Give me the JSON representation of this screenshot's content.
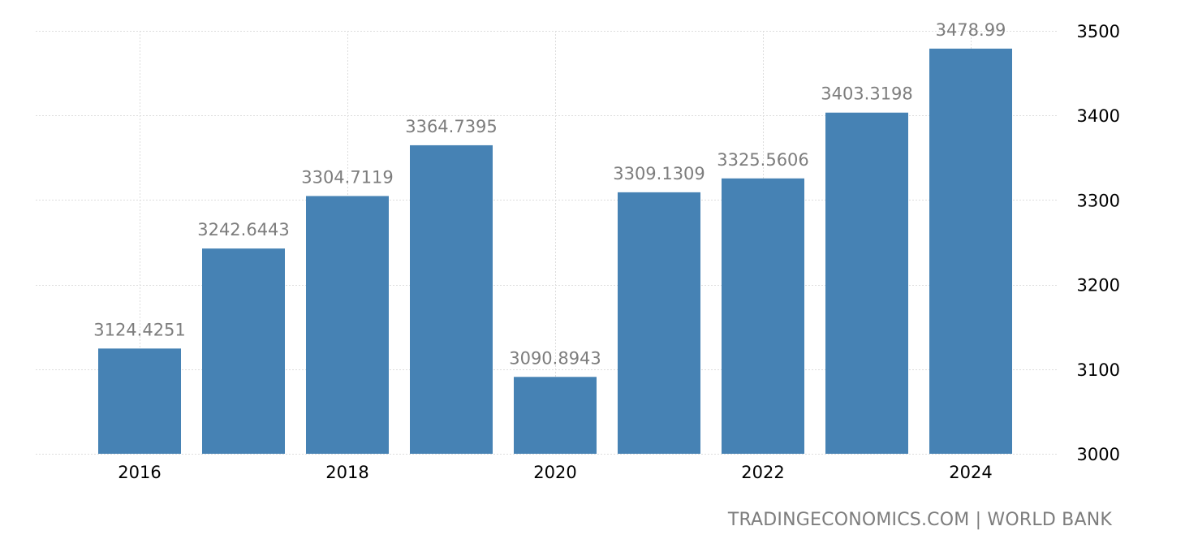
{
  "chart_data": {
    "type": "bar",
    "x": [
      2016,
      2017,
      2018,
      2019,
      2020,
      2021,
      2022,
      2023,
      2024
    ],
    "values": [
      3124.4251,
      3242.6443,
      3304.7119,
      3364.7395,
      3090.8943,
      3309.1309,
      3325.5606,
      3403.3198,
      3478.99
    ],
    "value_labels": [
      "3124.4251",
      "3242.6443",
      "3304.7119",
      "3364.7395",
      "3090.8943",
      "3309.1309",
      "3325.5606",
      "3403.3198",
      "3478.99"
    ],
    "x_tick_labels": [
      {
        "x": 2016,
        "label": "2016"
      },
      {
        "x": 2018,
        "label": "2018"
      },
      {
        "x": 2020,
        "label": "2020"
      },
      {
        "x": 2022,
        "label": "2022"
      },
      {
        "x": 2024,
        "label": "2024"
      }
    ],
    "y_ticks": [
      3000,
      3100,
      3200,
      3300,
      3400,
      3500
    ],
    "ylim": [
      3000,
      3500
    ],
    "y_axis_position": "right",
    "grid": true,
    "colors": {
      "bar": "#4682b4",
      "value_label": "#7d7d7d",
      "grid": "#dddddd",
      "tick_label": "#000000"
    }
  },
  "source_text": "TRADINGECONOMICS.COM | WORLD BANK"
}
